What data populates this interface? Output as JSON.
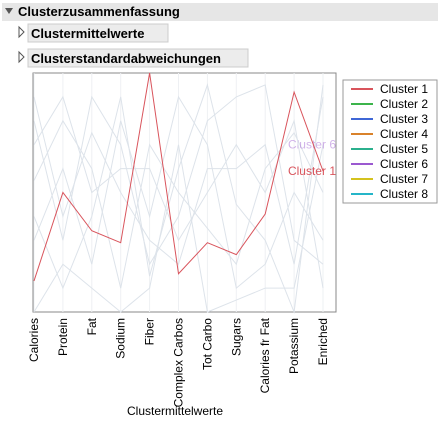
{
  "header": {
    "title": "Clusterzusammenfassung"
  },
  "sections": [
    "Clustermittelwerte",
    "Clusterstandardabweichungen"
  ],
  "chart_data": {
    "type": "parallel",
    "x_label": "Clustermittelwerte",
    "categories": [
      "Calories",
      "Protein",
      "Fat",
      "Sodium",
      "Fiber",
      "Complex Carbos",
      "Tot Carbo",
      "Sugars",
      "Calories fr Fat",
      "Potassium",
      "Enriched"
    ],
    "ylim": [
      0,
      1
    ],
    "selected_series": "Cluster 1",
    "dim_color": "#dde3ea",
    "series": [
      {
        "name": "Cluster 1",
        "color": "#d9545c",
        "end_label": true,
        "values": [
          0.13,
          0.5,
          0.34,
          0.29,
          1.0,
          0.16,
          0.29,
          0.24,
          0.41,
          0.92,
          0.59
        ]
      },
      {
        "name": "Cluster 2",
        "color": "#3cb44b",
        "values": [
          0.55,
          0.8,
          0.6,
          0.1,
          0.7,
          0.5,
          0.35,
          0.2,
          0.6,
          0.75,
          0.5
        ]
      },
      {
        "name": "Cluster 3",
        "color": "#3f67d6",
        "values": [
          0.8,
          0.3,
          0.9,
          0.7,
          0.2,
          0.4,
          0.8,
          0.9,
          0.95,
          0.3,
          0.2
        ]
      },
      {
        "name": "Cluster 4",
        "color": "#d9822b",
        "values": [
          0.3,
          0.6,
          0.2,
          0.8,
          0.4,
          0.9,
          0.7,
          0.1,
          0.2,
          0.5,
          0.3
        ]
      },
      {
        "name": "Cluster 5",
        "color": "#2bb08d",
        "values": [
          0.9,
          0.4,
          0.75,
          0.5,
          0.3,
          0.2,
          0.6,
          0.6,
          0.7,
          0.2,
          0.9
        ]
      },
      {
        "name": "Cluster 6",
        "color": "#9b59d0",
        "end_label": true,
        "values": [
          0.0,
          0.2,
          0.1,
          0.0,
          0.1,
          0.7,
          0.0,
          0.05,
          0.1,
          0.1,
          0.7
        ]
      },
      {
        "name": "Cluster 7",
        "color": "#d4c21e",
        "values": [
          0.7,
          0.9,
          0.5,
          0.6,
          0.6,
          0.3,
          0.5,
          0.7,
          0.5,
          0.8,
          0.1
        ]
      },
      {
        "name": "Cluster 8",
        "color": "#25b5c8",
        "values": [
          0.4,
          0.1,
          0.4,
          0.9,
          0.15,
          0.6,
          0.95,
          0.45,
          0.3,
          0.0,
          0.95
        ]
      }
    ]
  }
}
